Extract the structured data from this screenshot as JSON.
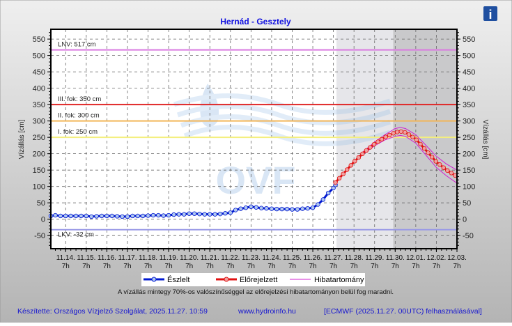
{
  "chart_data": {
    "type": "line",
    "title": "Hernád - Gesztely",
    "ylabel": "Vízállás [cm]",
    "ylabel_right": "Vízállás [cm]",
    "ylim": [
      -90,
      580
    ],
    "yticks": [
      -50,
      0,
      50,
      100,
      150,
      200,
      250,
      300,
      350,
      400,
      450,
      500,
      550
    ],
    "x_unit": "days after 11.14. 7h",
    "xlim": [
      -0.72,
      19
    ],
    "xticks": [
      {
        "date": "11.14.",
        "hour": "7h"
      },
      {
        "date": "11.15.",
        "hour": "7h"
      },
      {
        "date": "11.16.",
        "hour": "7h"
      },
      {
        "date": "11.17.",
        "hour": "7h"
      },
      {
        "date": "11.18.",
        "hour": "7h"
      },
      {
        "date": "11.19.",
        "hour": "7h"
      },
      {
        "date": "11.20.",
        "hour": "7h"
      },
      {
        "date": "11.21.",
        "hour": "7h"
      },
      {
        "date": "11.22.",
        "hour": "7h"
      },
      {
        "date": "11.23.",
        "hour": "7h"
      },
      {
        "date": "11.24.",
        "hour": "7h"
      },
      {
        "date": "11.25.",
        "hour": "7h"
      },
      {
        "date": "11.26.",
        "hour": "7h"
      },
      {
        "date": "11.27.",
        "hour": "7h"
      },
      {
        "date": "11.28.",
        "hour": "7h"
      },
      {
        "date": "11.29.",
        "hour": "7h"
      },
      {
        "date": "11.30.",
        "hour": "7h"
      },
      {
        "date": "12.01.",
        "hour": "7h"
      },
      {
        "date": "12.02.",
        "hour": "7h"
      },
      {
        "date": "12.03.",
        "hour": "7h"
      }
    ],
    "shaded_regions": [
      {
        "from": 13.15,
        "to": 15.9,
        "color": "#e6e6ea"
      },
      {
        "from": 15.9,
        "to": 19,
        "color": "#c9c9cb"
      }
    ],
    "reference_lines": [
      {
        "label": "LNV: 517 cm",
        "value": 517,
        "color": "#d97be0"
      },
      {
        "label": "III. fok: 350 cm",
        "value": 350,
        "color": "#e02424"
      },
      {
        "label": "II. fok: 300 cm",
        "value": 300,
        "color": "#f2b65a"
      },
      {
        "label": "I. fok: 250 cm",
        "value": 250,
        "color": "#f4ef7e"
      },
      {
        "label": "LKV: -32 cm",
        "value": -32,
        "color": "#9a9ae6"
      }
    ],
    "series": [
      {
        "name": "Észlelt",
        "color": "#0018d0",
        "x": [
          -0.72,
          -0.5,
          -0.25,
          0,
          0.25,
          0.5,
          0.75,
          1,
          1.25,
          1.5,
          1.75,
          2,
          2.25,
          2.5,
          2.75,
          3,
          3.25,
          3.5,
          3.75,
          4,
          4.25,
          4.5,
          4.75,
          5,
          5.25,
          5.5,
          5.75,
          6,
          6.25,
          6.5,
          6.75,
          7,
          7.25,
          7.5,
          7.75,
          8,
          8.25,
          8.5,
          8.75,
          9,
          9.25,
          9.5,
          9.75,
          10,
          10.25,
          10.5,
          10.75,
          11,
          11.25,
          11.5,
          11.75,
          12,
          12.25,
          12.5,
          12.75,
          13,
          13.1
        ],
        "y": [
          10,
          12,
          10,
          10,
          10,
          10,
          10,
          10,
          8,
          9,
          10,
          10,
          10,
          9,
          8,
          8,
          10,
          10,
          10,
          11,
          12,
          12,
          11,
          12,
          14,
          15,
          15,
          17,
          17,
          16,
          15,
          15,
          15,
          16,
          18,
          20,
          28,
          32,
          35,
          38,
          36,
          34,
          33,
          32,
          31,
          31,
          31,
          30,
          30,
          32,
          33,
          35,
          45,
          60,
          80,
          95,
          105
        ]
      },
      {
        "name": "Előrejelzett",
        "color": "#e01010",
        "x": [
          13.1,
          13.5,
          14,
          14.5,
          15,
          15.5,
          16,
          16.25,
          16.5,
          17,
          17.5,
          18,
          18.5,
          19
        ],
        "y": [
          112,
          140,
          175,
          205,
          230,
          250,
          265,
          268,
          265,
          245,
          210,
          175,
          150,
          130
        ]
      },
      {
        "name": "Hibatartomány",
        "color": "#d020d0",
        "x": [
          13.1,
          13.5,
          14,
          14.5,
          15,
          15.5,
          16,
          16.25,
          16.5,
          17,
          17.5,
          18,
          18.5,
          19
        ],
        "upper": [
          112,
          141,
          177,
          209,
          236,
          258,
          277,
          280,
          277,
          258,
          225,
          192,
          168,
          150
        ],
        "lower": [
          112,
          139,
          173,
          201,
          224,
          242,
          253,
          256,
          253,
          232,
          195,
          158,
          132,
          110
        ]
      }
    ]
  },
  "info_icon": "info-icon",
  "legend": {
    "observed": "Észlelt",
    "forecast": "Előrejelzett",
    "error": "Hibatartomány"
  },
  "note": "A vízállás mintegy 70%-os valószínűséggel az előrejelzési hibatartományon belül fog maradni.",
  "footer": {
    "author": "Készítette: Országos Vízjelző Szolgálat, 2025.11.27. 10:59",
    "site": "www.hydroinfo.hu",
    "source": "[ECMWF (2025.11.27. 00UTC) felhasználásával]"
  },
  "watermark": "OVF"
}
